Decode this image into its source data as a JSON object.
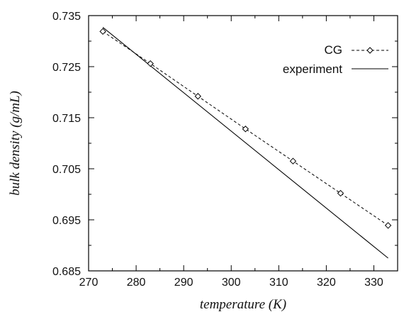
{
  "chart_data": {
    "type": "line",
    "xlabel": "temperature (K)",
    "ylabel": "bulk density (g/mL)",
    "xlim": [
      270,
      335
    ],
    "ylim": [
      0.685,
      0.735
    ],
    "x_ticks": [
      "270",
      "280",
      "290",
      "300",
      "310",
      "320",
      "330"
    ],
    "y_ticks": [
      "0.685",
      "0.695",
      "0.705",
      "0.715",
      "0.725",
      "0.735"
    ],
    "grid": false,
    "legend_position": "top-right",
    "series": [
      {
        "name": "CG",
        "style": "dashed-with-diamond-markers",
        "color": "#000000",
        "x": [
          273,
          283,
          293,
          303,
          313,
          323,
          333
        ],
        "y": [
          0.7319,
          0.7256,
          0.7192,
          0.7128,
          0.7065,
          0.7002,
          0.6939
        ]
      },
      {
        "name": "experiment",
        "style": "solid",
        "color": "#000000",
        "x": [
          273,
          333
        ],
        "y": [
          0.7327,
          0.6875
        ]
      }
    ]
  }
}
